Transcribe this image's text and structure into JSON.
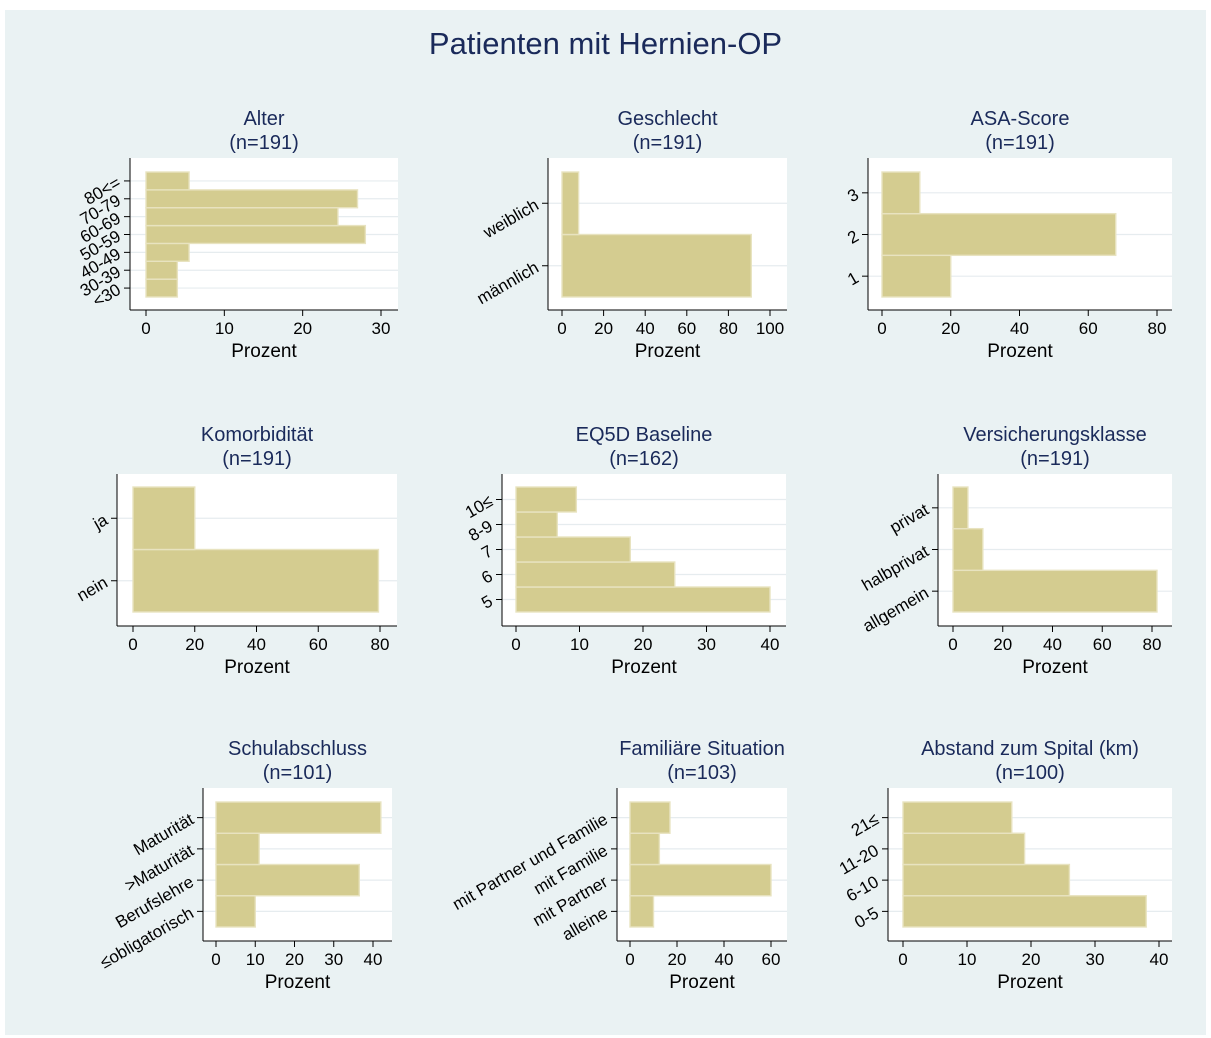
{
  "figure": {
    "title": "Patienten mit Hernien-OP",
    "colors": {
      "background": "#eaf2f3",
      "plot_bg": "#ffffff",
      "bar": "#d4cc90",
      "bar_edge": "#e8e3c0",
      "grid": "#e6ecef",
      "title": "#1a2a5a"
    }
  },
  "chart_data": [
    {
      "type": "bar",
      "orientation": "horizontal",
      "title": "Alter",
      "subtitle": "(n=191)",
      "xlabel": "Prozent",
      "ylabel": "",
      "categories": [
        "<30",
        "30-39",
        "40-49",
        "50-59",
        "60-69",
        "70-79",
        "80<="
      ],
      "values": [
        4,
        4,
        5.5,
        28,
        24.5,
        27,
        5.5
      ],
      "xlim": [
        0,
        30
      ],
      "xticks": [
        0,
        10,
        20,
        30
      ],
      "grid": true,
      "legend": false
    },
    {
      "type": "bar",
      "orientation": "horizontal",
      "title": "Geschlecht",
      "subtitle": "(n=191)",
      "xlabel": "Prozent",
      "ylabel": "",
      "categories": [
        "männlich",
        "weiblich"
      ],
      "values": [
        91,
        8
      ],
      "xlim": [
        0,
        100
      ],
      "xticks": [
        0,
        20,
        40,
        60,
        80,
        100
      ],
      "grid": true,
      "legend": false
    },
    {
      "type": "bar",
      "orientation": "horizontal",
      "title": "ASA-Score",
      "subtitle": "(n=191)",
      "xlabel": "Prozent",
      "ylabel": "",
      "categories": [
        "1",
        "2",
        "3"
      ],
      "values": [
        20,
        68,
        11
      ],
      "xlim": [
        0,
        80
      ],
      "xticks": [
        0,
        20,
        40,
        60,
        80
      ],
      "grid": true,
      "legend": false
    },
    {
      "type": "bar",
      "orientation": "horizontal",
      "title": "Komorbidität",
      "subtitle": "(n=191)",
      "xlabel": "Prozent",
      "ylabel": "",
      "categories": [
        "nein",
        "ja"
      ],
      "values": [
        79.5,
        20
      ],
      "xlim": [
        0,
        80
      ],
      "xticks": [
        0,
        20,
        40,
        60,
        80
      ],
      "grid": true,
      "legend": false
    },
    {
      "type": "bar",
      "orientation": "horizontal",
      "title": "EQ5D Baseline",
      "subtitle": "(n=162)",
      "xlabel": "Prozent",
      "ylabel": "",
      "categories": [
        "5",
        "6",
        "7",
        "8-9",
        "10≤"
      ],
      "values": [
        40,
        25,
        18,
        6.5,
        9.5
      ],
      "xlim": [
        0,
        40
      ],
      "xticks": [
        0,
        10,
        20,
        30,
        40
      ],
      "grid": true,
      "legend": false
    },
    {
      "type": "bar",
      "orientation": "horizontal",
      "title": "Versicherungsklasse",
      "subtitle": "(n=191)",
      "xlabel": "Prozent",
      "ylabel": "",
      "categories": [
        "allgemein",
        "halbprivat",
        "privat"
      ],
      "values": [
        82,
        12,
        6
      ],
      "xlim": [
        0,
        80
      ],
      "xticks": [
        0,
        20,
        40,
        60,
        80
      ],
      "grid": true,
      "legend": false
    },
    {
      "type": "bar",
      "orientation": "horizontal",
      "title": "Schulabschluss",
      "subtitle": "(n=101)",
      "xlabel": "Prozent",
      "ylabel": "",
      "categories": [
        "≤obligatorisch",
        "Berufslehre",
        ">Maturität",
        "Maturität"
      ],
      "values": [
        10,
        36.5,
        11,
        42
      ],
      "xlim": [
        0,
        40
      ],
      "xticks": [
        0,
        10,
        20,
        30,
        40
      ],
      "grid": true,
      "legend": false
    },
    {
      "type": "bar",
      "orientation": "horizontal",
      "title": "Familiäre Situation",
      "subtitle": "(n=103)",
      "xlabel": "Prozent",
      "ylabel": "",
      "categories": [
        "alleine",
        "mit Partner",
        "mit Familie",
        "mit Partner und Familie"
      ],
      "values": [
        10,
        60,
        12.5,
        17
      ],
      "xlim": [
        0,
        60
      ],
      "xticks": [
        0,
        20,
        40,
        60
      ],
      "grid": true,
      "legend": false
    },
    {
      "type": "bar",
      "orientation": "horizontal",
      "title": "Abstand zum Spital (km)",
      "subtitle": "(n=100)",
      "xlabel": "Prozent",
      "ylabel": "",
      "categories": [
        "0-5",
        "6-10",
        "11-20",
        "21≤"
      ],
      "values": [
        38,
        26,
        19,
        17
      ],
      "xlim": [
        0,
        40
      ],
      "xticks": [
        0,
        10,
        20,
        30,
        40
      ],
      "grid": true,
      "legend": false
    }
  ]
}
